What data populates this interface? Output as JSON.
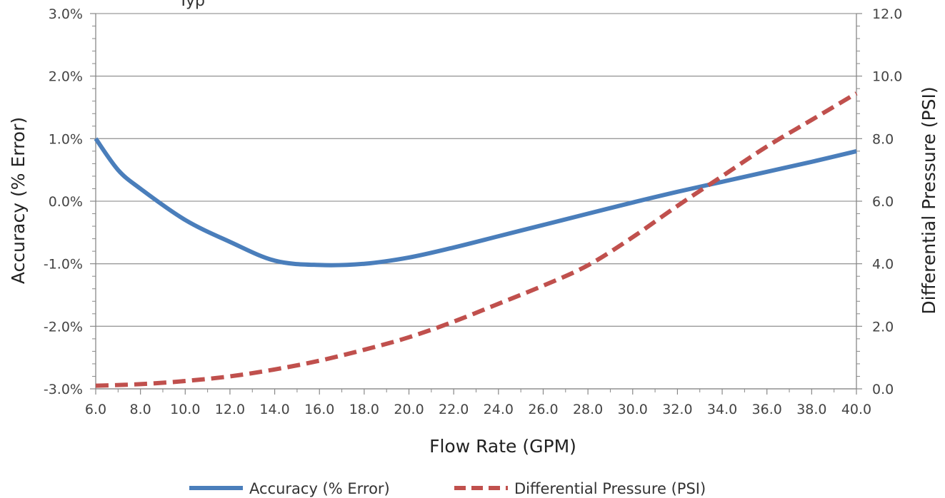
{
  "chart_data": {
    "type": "line",
    "title_partial": "Typ",
    "xlabel": "Flow Rate (GPM)",
    "ylabel_left": "Accuracy (% Error)",
    "ylabel_right": "Differential Pressure (PSI)",
    "xlim": [
      6,
      40
    ],
    "ylim_left": [
      -3,
      3
    ],
    "ylim_right": [
      0,
      12
    ],
    "x_ticks": [
      "6.0",
      "8.0",
      "10.0",
      "12.0",
      "14.0",
      "16.0",
      "18.0",
      "20.0",
      "22.0",
      "24.0",
      "26.0",
      "28.0",
      "30.0",
      "32.0",
      "34.0",
      "36.0",
      "38.0",
      "40.0"
    ],
    "y_left_ticks": [
      "3.0%",
      "2.0%",
      "1.0%",
      "0.0%",
      "-1.0%",
      "-2.0%",
      "-3.0%"
    ],
    "y_right_ticks": [
      "12.0",
      "10.0",
      "8.0",
      "6.0",
      "4.0",
      "2.0",
      "0.0"
    ],
    "grid": "horizontal",
    "legend_position": "bottom",
    "series": [
      {
        "name": "Accuracy (% Error)",
        "axis": "left",
        "color": "#4a7ebb",
        "style": "solid",
        "x": [
          6,
          7,
          8,
          10,
          12,
          14,
          16,
          18,
          20,
          22,
          24,
          26,
          28,
          30,
          32,
          34,
          36,
          38,
          40
        ],
        "y": [
          1.0,
          0.5,
          0.2,
          -0.3,
          -0.65,
          -0.95,
          -1.02,
          -1.0,
          -0.9,
          -0.74,
          -0.56,
          -0.38,
          -0.2,
          -0.02,
          0.15,
          0.31,
          0.47,
          0.63,
          0.8
        ]
      },
      {
        "name": "Differential Pressure (PSI)",
        "axis": "right",
        "color": "#c0504d",
        "style": "dashed",
        "x": [
          6,
          8,
          10,
          12,
          14,
          16,
          18,
          20,
          22,
          24,
          26,
          28,
          30,
          32,
          34,
          36,
          38,
          40
        ],
        "y": [
          0.1,
          0.15,
          0.25,
          0.4,
          0.62,
          0.9,
          1.25,
          1.65,
          2.15,
          2.72,
          3.3,
          3.95,
          4.85,
          5.85,
          6.8,
          7.75,
          8.6,
          9.45
        ]
      }
    ]
  }
}
